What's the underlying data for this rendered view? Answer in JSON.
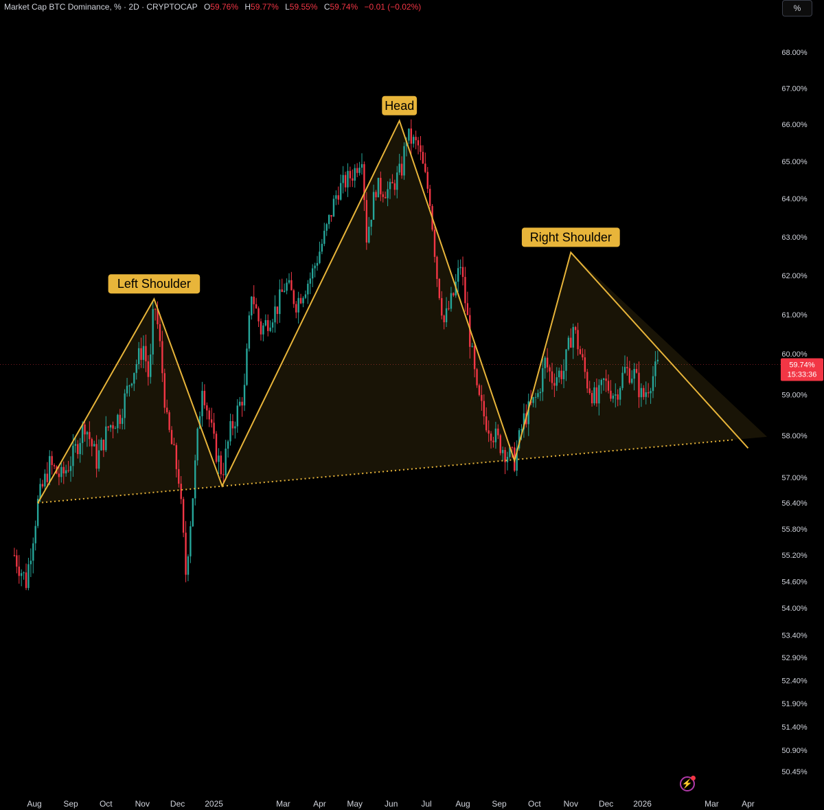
{
  "legend": {
    "title": "Market Cap BTC Dominance, % · 2D · CRYPTOCAP",
    "o_label": "O",
    "o_value": "59.76%",
    "h_label": "H",
    "h_value": "59.77%",
    "l_label": "L",
    "l_value": "59.55%",
    "c_label": "C",
    "c_value": "59.74%",
    "change": "−0.01 (−0.02%)"
  },
  "unit_button": "%",
  "current_price": {
    "value": "59.74%",
    "countdown": "15:33:36"
  },
  "colors": {
    "up": "#26a69a",
    "down": "#f23645",
    "pattern": "#e8b53a",
    "label_bg": "#e8b53a"
  },
  "icons": {
    "lightning": "lightning-icon"
  },
  "chart_data": {
    "type": "candlestick",
    "title": "Market Cap BTC Dominance, %",
    "y_axis": {
      "tick_labels": [
        "68.00%",
        "67.00%",
        "66.00%",
        "65.00%",
        "64.00%",
        "63.00%",
        "62.00%",
        "61.00%",
        "60.00%",
        "59.00%",
        "58.00%",
        "57.00%",
        "56.40%",
        "55.80%",
        "55.20%",
        "54.60%",
        "54.00%",
        "53.40%",
        "52.90%",
        "52.40%",
        "51.90%",
        "51.40%",
        "50.90%",
        "50.45%"
      ],
      "scale": "log"
    },
    "x_axis": {
      "tick_labels": [
        "Aug",
        "Sep",
        "Oct",
        "Nov",
        "Dec",
        "2025",
        "Mar",
        "Apr",
        "May",
        "Jun",
        "Jul",
        "Aug",
        "Sep",
        "Oct",
        "Nov",
        "Dec",
        "2026",
        "Mar",
        "Apr"
      ]
    },
    "price_path": [
      [
        "2024-07-15",
        55.2
      ],
      [
        "2024-07-25",
        54.6
      ],
      [
        "2024-08-04",
        56.4
      ],
      [
        "2024-08-14",
        57.3
      ],
      [
        "2024-08-24",
        57.0
      ],
      [
        "2024-09-03",
        57.5
      ],
      [
        "2024-09-13",
        58.3
      ],
      [
        "2024-09-23",
        57.4
      ],
      [
        "2024-10-03",
        58.2
      ],
      [
        "2024-10-13",
        58.5
      ],
      [
        "2024-10-23",
        59.5
      ],
      [
        "2024-11-02",
        60.2
      ],
      [
        "2024-11-07",
        59.3
      ],
      [
        "2024-11-11",
        61.4
      ],
      [
        "2024-11-15",
        60.5
      ],
      [
        "2024-11-22",
        58.3
      ],
      [
        "2024-12-02",
        57.0
      ],
      [
        "2024-12-08",
        54.8
      ],
      [
        "2024-12-14",
        56.6
      ],
      [
        "2024-12-22",
        59.3
      ],
      [
        "2025-01-01",
        57.8
      ],
      [
        "2025-01-08",
        57.1
      ],
      [
        "2025-01-15",
        58.1
      ],
      [
        "2025-01-27",
        59.1
      ],
      [
        "2025-02-02",
        61.6
      ],
      [
        "2025-02-10",
        60.6
      ],
      [
        "2025-02-24",
        61.2
      ],
      [
        "2025-03-03",
        61.8
      ],
      [
        "2025-03-12",
        61.3
      ],
      [
        "2025-03-25",
        62.0
      ],
      [
        "2025-04-06",
        63.1
      ],
      [
        "2025-04-16",
        64.2
      ],
      [
        "2025-04-30",
        64.7
      ],
      [
        "2025-05-07",
        65.2
      ],
      [
        "2025-05-11",
        63.0
      ],
      [
        "2025-05-19",
        64.3
      ],
      [
        "2025-05-31",
        64.2
      ],
      [
        "2025-06-10",
        64.8
      ],
      [
        "2025-06-14",
        65.7
      ],
      [
        "2025-06-24",
        65.4
      ],
      [
        "2025-07-04",
        64.0
      ],
      [
        "2025-07-10",
        62.0
      ],
      [
        "2025-07-16",
        60.8
      ],
      [
        "2025-07-24",
        61.5
      ],
      [
        "2025-07-30",
        62.3
      ],
      [
        "2025-08-07",
        60.4
      ],
      [
        "2025-08-13",
        59.0
      ],
      [
        "2025-08-20",
        58.4
      ],
      [
        "2025-08-30",
        57.9
      ],
      [
        "2025-09-07",
        57.6
      ],
      [
        "2025-09-14",
        57.4
      ],
      [
        "2025-09-22",
        58.4
      ],
      [
        "2025-10-04",
        59.0
      ],
      [
        "2025-10-10",
        59.8
      ],
      [
        "2025-10-16",
        59.4
      ],
      [
        "2025-10-26",
        59.6
      ],
      [
        "2025-11-03",
        60.7
      ],
      [
        "2025-11-09",
        60.0
      ],
      [
        "2025-11-15",
        59.3
      ],
      [
        "2025-11-23",
        58.8
      ],
      [
        "2025-11-29",
        59.3
      ],
      [
        "2025-12-09",
        59.0
      ],
      [
        "2025-12-17",
        59.6
      ],
      [
        "2025-12-25",
        59.5
      ],
      [
        "2026-01-01",
        58.9
      ],
      [
        "2026-01-07",
        59.3
      ],
      [
        "2026-01-15",
        59.74
      ]
    ],
    "pattern": {
      "name": "Head and Shoulders",
      "labels": [
        "Left Shoulder",
        "Head",
        "Right Shoulder"
      ],
      "points": [
        [
          "2024-08-04",
          56.4
        ],
        [
          "2024-11-11",
          61.4
        ],
        [
          "2025-01-08",
          56.8
        ],
        [
          "2025-06-08",
          66.1
        ],
        [
          "2025-09-14",
          57.4
        ],
        [
          "2025-11-01",
          62.6
        ],
        [
          "2026-04-01",
          57.7
        ]
      ],
      "neckline": [
        [
          "2024-08-04",
          56.4
        ],
        [
          "2026-03-20",
          57.9
        ]
      ]
    },
    "current_value": 59.74
  }
}
